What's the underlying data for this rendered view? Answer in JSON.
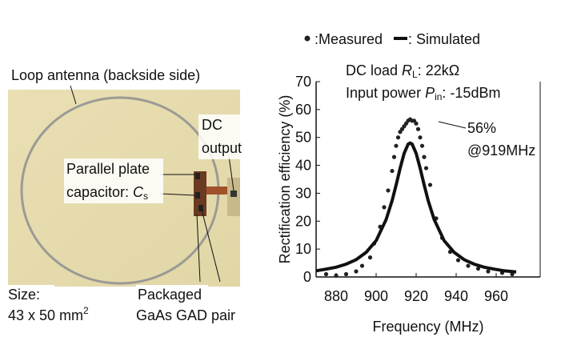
{
  "photo": {
    "labels": {
      "antenna": "Loop antenna (backside side)",
      "dc1": "DC",
      "dc2": "output",
      "cap1": "Parallel plate",
      "cap2a": "capacitor: ",
      "cap2b": "C",
      "cap2c": "s",
      "size1": "Size:",
      "size2a": "43 x 50 mm",
      "size2b": "2",
      "pkg1": "Packaged",
      "pkg2": "GaAs GAD pair"
    }
  },
  "chart_data": {
    "type": "scatter",
    "x_label": "Frequency (MHz)",
    "y_label": "Rectification efficiency (%)",
    "annotations": {
      "load_a": "DC load ",
      "load_b": "R",
      "load_c": "L",
      "load_d": ": 22kΩ",
      "pin_a": "Input power ",
      "pin_b": "P",
      "pin_c": "in",
      "pin_d": ": -15dBm",
      "peak1": "56%",
      "peak2": "@919MHz"
    },
    "xlim": [
      870,
      980
    ],
    "xticks": [
      880,
      900,
      920,
      940,
      960
    ],
    "ylim": [
      0,
      70
    ],
    "yticks": [
      0,
      10,
      20,
      30,
      40,
      50,
      60,
      70
    ],
    "series": [
      {
        "name": ":Measured",
        "style": "marker",
        "color": "#222222",
        "x": [
          875,
          880,
          885,
          890,
          893,
          897,
          899,
          902,
          904,
          906,
          908,
          909,
          910,
          911,
          912,
          913,
          914,
          915,
          916,
          917,
          918,
          919,
          920,
          921,
          922,
          923,
          924,
          925,
          927,
          930,
          933,
          937,
          941,
          946,
          951,
          956,
          963,
          968
        ],
        "values": [
          1,
          0.5,
          1,
          2,
          4,
          7,
          12,
          18,
          25,
          31,
          38,
          43,
          47,
          50,
          52,
          53,
          54,
          55,
          56,
          56.5,
          56,
          56,
          55,
          53,
          50,
          47,
          43,
          39,
          33,
          21,
          14,
          9,
          6,
          4,
          3,
          2,
          1.5,
          1
        ]
      },
      {
        "name": ": Simulated",
        "style": "line",
        "color": "#111111",
        "x": [
          870,
          875,
          880,
          885,
          890,
          895,
          900,
          905,
          908,
          910,
          912,
          914,
          916,
          917,
          918,
          920,
          922,
          924,
          926,
          929,
          934,
          939,
          944,
          949,
          954,
          959,
          964,
          970
        ],
        "values": [
          2.2,
          2.8,
          3.5,
          4.6,
          6.2,
          8.8,
          13,
          20.6,
          27.4,
          33,
          39,
          44.3,
          47.6,
          48,
          47.6,
          44.3,
          39,
          33,
          27.4,
          20.6,
          13,
          8.8,
          6.2,
          4.6,
          3.5,
          2.8,
          2.2,
          1.8
        ]
      }
    ]
  }
}
